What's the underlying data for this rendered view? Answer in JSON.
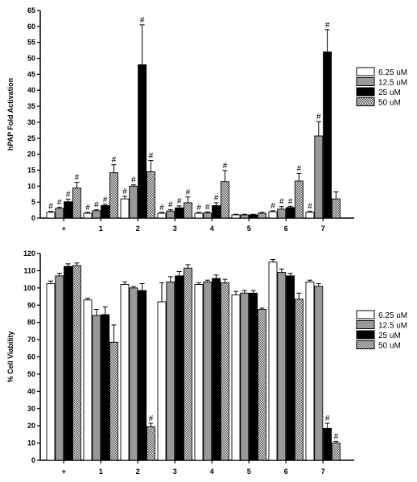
{
  "chart_data": [
    {
      "type": "bar",
      "ylabel": "hPAP Fold  Activation",
      "xlabel": "",
      "categories": [
        "+",
        "1",
        "2",
        "3",
        "4",
        "5",
        "6",
        "7"
      ],
      "yticks": [
        "0",
        "5",
        "10",
        "15",
        "20",
        "25",
        "30",
        "35",
        "40",
        "45",
        "50",
        "55",
        "60",
        "65"
      ],
      "ylim": [
        0,
        65
      ],
      "legend_position": "right",
      "series": [
        {
          "name": "6.25 uM",
          "fill": "white",
          "values": [
            1.8,
            1.5,
            6.0,
            1.5,
            1.5,
            1.0,
            2.0,
            1.8
          ],
          "errors": [
            0.3,
            0.3,
            0.8,
            0.3,
            0.3,
            0.2,
            0.3,
            0.3
          ],
          "marks": [
            true,
            true,
            true,
            true,
            true,
            false,
            true,
            true
          ]
        },
        {
          "name": "12.5 uM",
          "fill": "gray",
          "values": [
            3.0,
            2.3,
            10.0,
            2.2,
            1.6,
            1.0,
            2.8,
            25.7
          ],
          "errors": [
            0.4,
            0.3,
            0.4,
            0.4,
            0.3,
            0.2,
            0.8,
            4.5
          ],
          "marks": [
            true,
            true,
            true,
            true,
            true,
            false,
            true,
            true
          ]
        },
        {
          "name": "25 uM",
          "fill": "black",
          "values": [
            5.1,
            3.9,
            48.0,
            3.2,
            3.9,
            1.0,
            3.3,
            52.0
          ],
          "errors": [
            0.8,
            0.4,
            12.5,
            0.6,
            0.9,
            0.2,
            0.4,
            7.0
          ],
          "marks": [
            true,
            true,
            true,
            true,
            true,
            false,
            true,
            true
          ]
        },
        {
          "name": "50 uM",
          "fill": "hatched",
          "values": [
            9.4,
            14.2,
            14.5,
            4.8,
            11.4,
            1.5,
            11.6,
            6.0
          ],
          "errors": [
            1.8,
            2.5,
            3.5,
            1.8,
            3.5,
            0.3,
            2.4,
            2.2
          ],
          "marks": [
            true,
            true,
            true,
            true,
            true,
            false,
            true,
            false
          ]
        }
      ],
      "annotation_mark": "#"
    },
    {
      "type": "bar",
      "ylabel": "% Cell Viability",
      "xlabel": "",
      "categories": [
        "+",
        "1",
        "2",
        "3",
        "4",
        "5",
        "6",
        "7"
      ],
      "yticks": [
        "0",
        "10",
        "20",
        "30",
        "40",
        "50",
        "60",
        "70",
        "80",
        "90",
        "100",
        "110",
        "120"
      ],
      "ylim": [
        0,
        120
      ],
      "legend_position": "right",
      "series": [
        {
          "name": "6.25 uM",
          "fill": "white",
          "values": [
            102.5,
            93.0,
            102.0,
            92.0,
            102.0,
            96.0,
            115.0,
            103.5
          ],
          "errors": [
            1.5,
            1.0,
            1.5,
            11.0,
            1.0,
            2.0,
            1.5,
            1.0
          ],
          "marks": [
            false,
            false,
            false,
            false,
            false,
            false,
            false,
            false
          ]
        },
        {
          "name": "12.5 uM",
          "fill": "gray",
          "values": [
            107.0,
            84.0,
            100.0,
            103.5,
            103.5,
            97.0,
            109.0,
            101.0
          ],
          "errors": [
            1.5,
            3.5,
            0.8,
            3.0,
            1.0,
            1.5,
            2.0,
            1.5
          ],
          "marks": [
            false,
            false,
            false,
            false,
            false,
            false,
            false,
            false
          ]
        },
        {
          "name": "25 uM",
          "fill": "black",
          "values": [
            112.5,
            84.5,
            98.5,
            107.0,
            105.5,
            97.0,
            107.0,
            18.5
          ],
          "errors": [
            1.5,
            4.5,
            4.0,
            2.5,
            2.0,
            1.5,
            1.5,
            3.0
          ],
          "marks": [
            false,
            false,
            false,
            false,
            false,
            false,
            false,
            true
          ]
        },
        {
          "name": "50 uM",
          "fill": "hatched",
          "values": [
            113.0,
            68.5,
            19.5,
            111.5,
            103.0,
            87.5,
            93.5,
            10.0
          ],
          "errors": [
            1.5,
            10.0,
            2.0,
            2.0,
            2.0,
            0.8,
            3.5,
            1.0
          ],
          "marks": [
            false,
            false,
            true,
            false,
            false,
            false,
            false,
            true
          ]
        }
      ],
      "annotation_mark": "#"
    }
  ]
}
